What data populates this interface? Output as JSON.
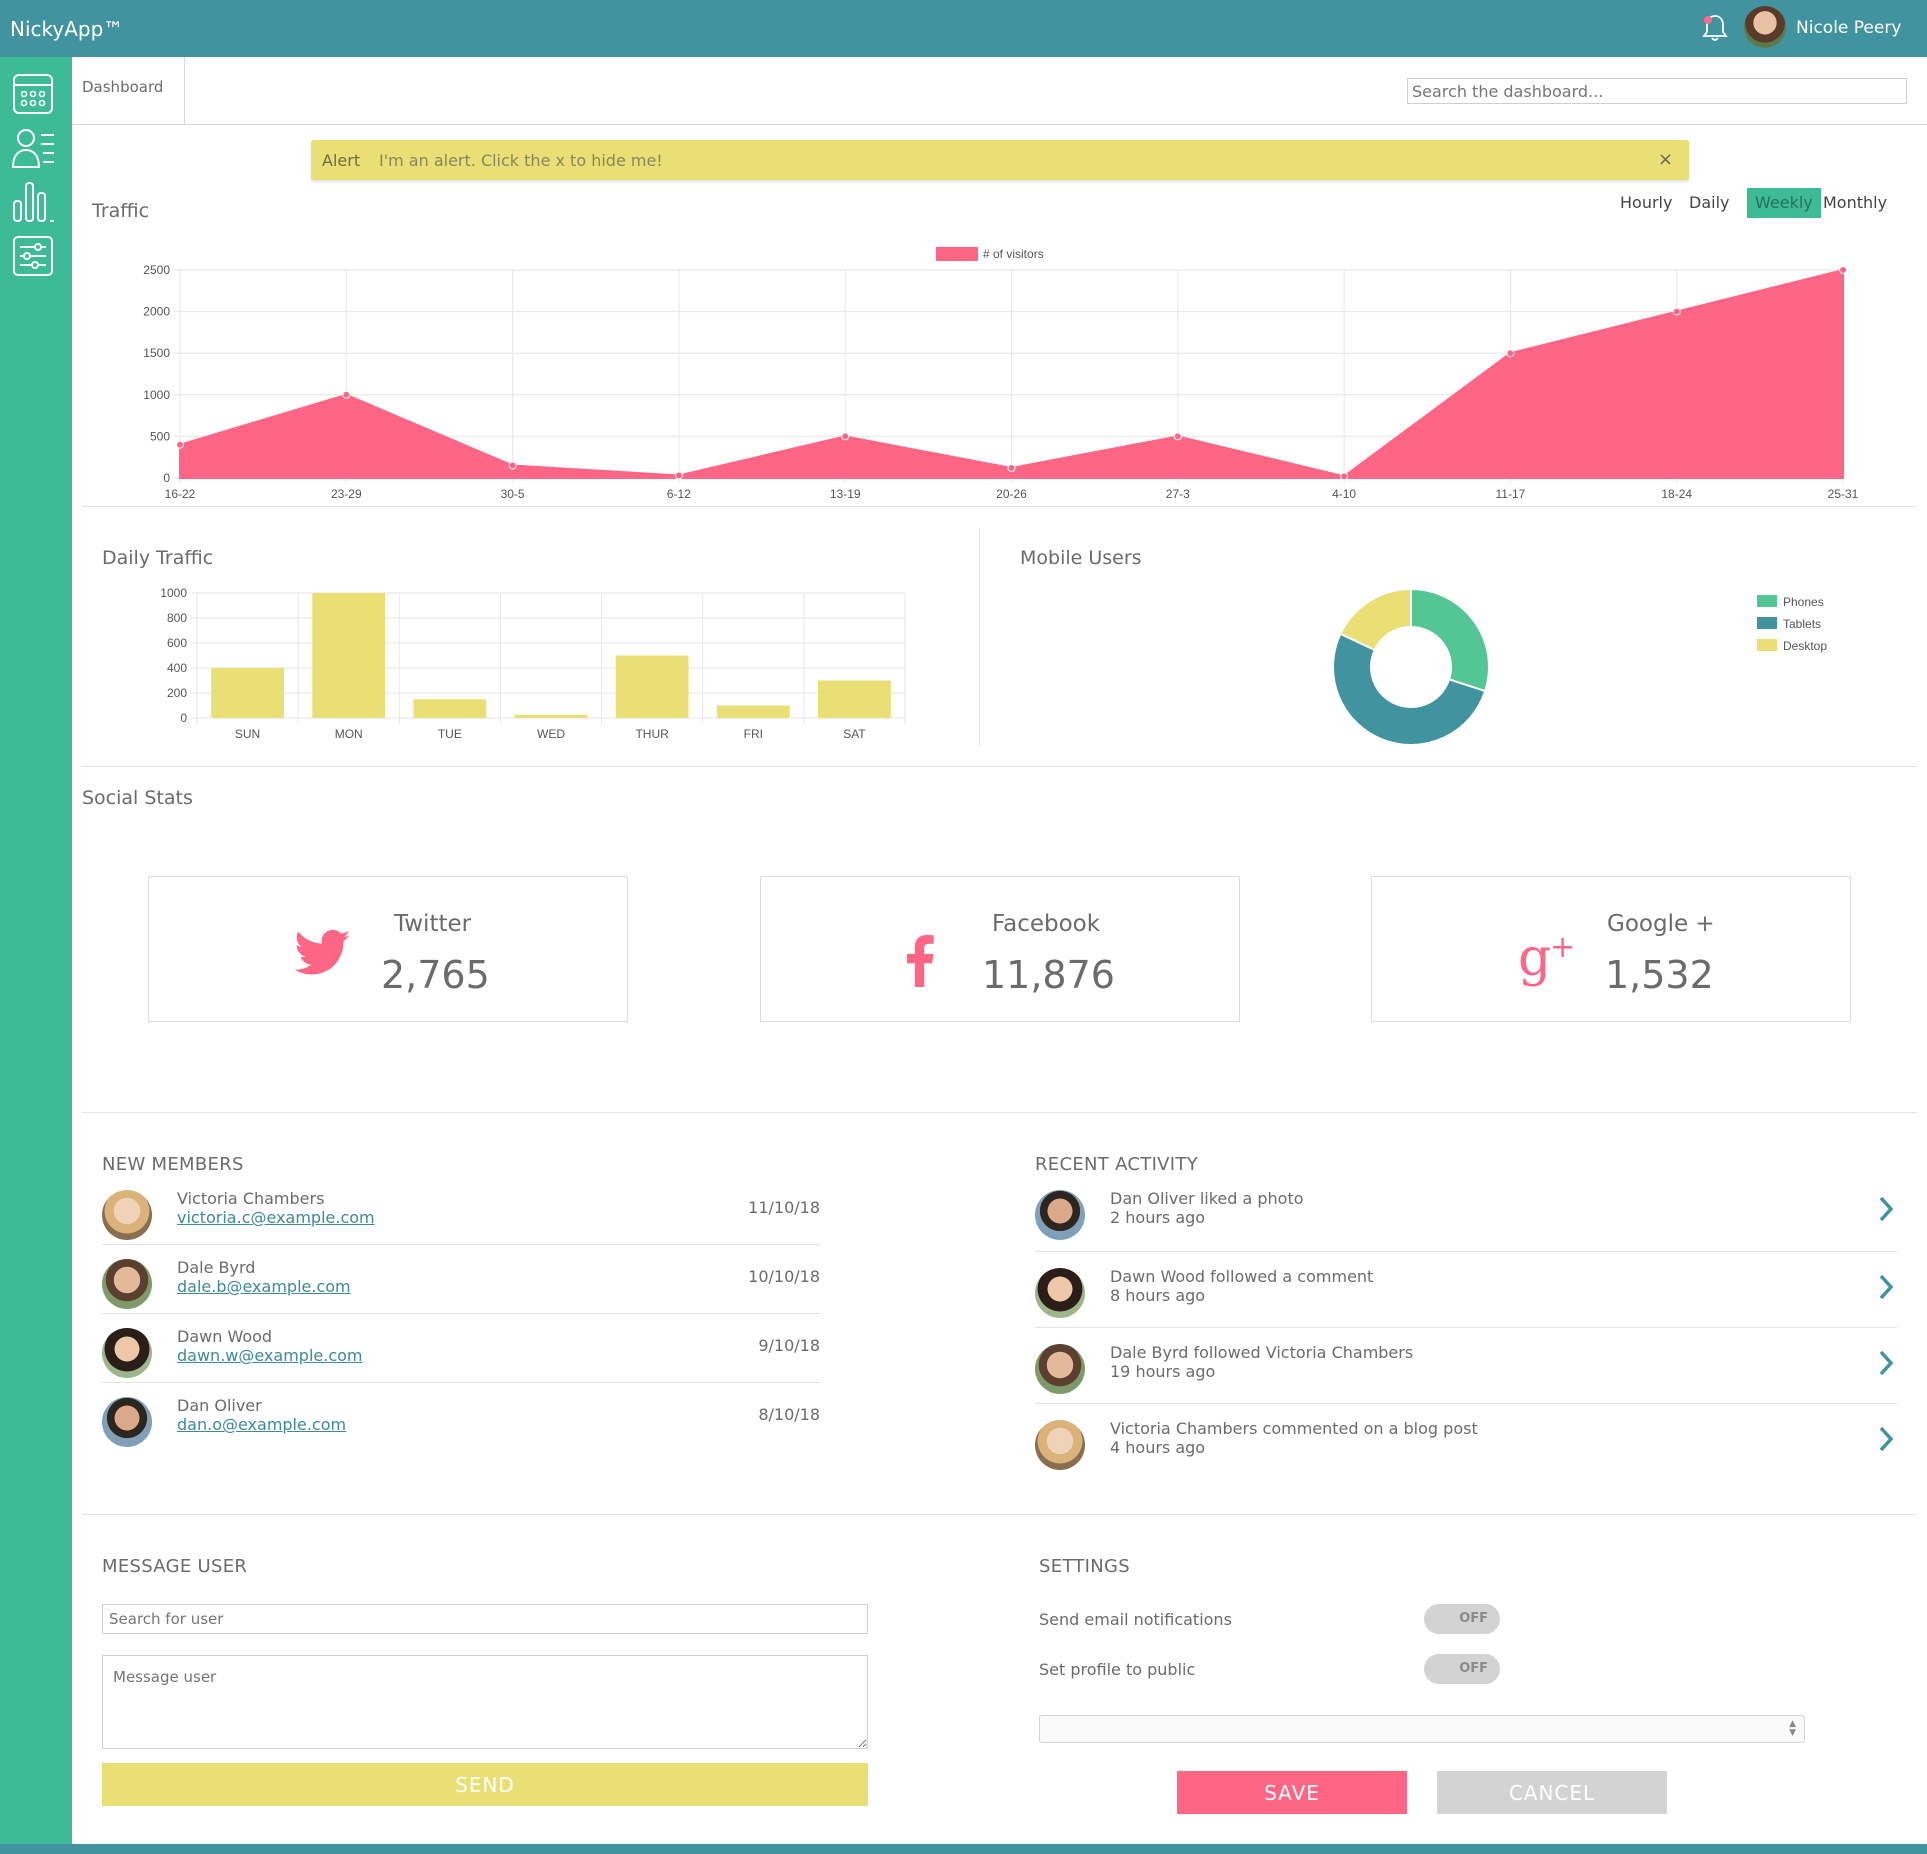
{
  "app": {
    "title": "NickyApp™"
  },
  "user": {
    "name": "Nicole Peery"
  },
  "header": {
    "tab": "Dashboard",
    "search_placeholder": "Search the dashboard..."
  },
  "alert": {
    "title": "Alert",
    "message": "I'm an alert. Click the x to hide me!",
    "close": "×"
  },
  "traffic": {
    "title": "Traffic",
    "tabs": [
      "Hourly",
      "Daily",
      "Weekly",
      "Monthly"
    ],
    "active_tab": "Weekly"
  },
  "daily_traffic": {
    "title": "Daily Traffic"
  },
  "mobile_users": {
    "title": "Mobile Users"
  },
  "chart_data": [
    {
      "type": "area",
      "legend": [
        "# of visitors"
      ],
      "legend_position": "top-center",
      "categories": [
        "16-22",
        "23-29",
        "30-5",
        "6-12",
        "13-19",
        "20-26",
        "27-3",
        "4-10",
        "11-17",
        "18-24",
        "25-31"
      ],
      "series": [
        {
          "name": "# of visitors",
          "values": [
            400,
            1000,
            150,
            30,
            500,
            120,
            500,
            20,
            1500,
            2000,
            2500
          ]
        }
      ],
      "ylim": [
        0,
        2500
      ],
      "yticks": [
        0,
        500,
        1000,
        1500,
        2000,
        2500
      ],
      "grid": true,
      "color": "#ff6584"
    },
    {
      "type": "bar",
      "categories": [
        "SUN",
        "MON",
        "TUE",
        "WED",
        "THUR",
        "FRI",
        "SAT"
      ],
      "values": [
        400,
        1000,
        150,
        25,
        500,
        100,
        300
      ],
      "ylim": [
        0,
        1000
      ],
      "yticks": [
        0,
        200,
        400,
        600,
        800,
        1000
      ],
      "grid": true,
      "color": "#e9df74"
    },
    {
      "type": "pie",
      "donut": true,
      "labels": [
        "Phones",
        "Tablets",
        "Desktop"
      ],
      "values": [
        30,
        52,
        18
      ],
      "colors": [
        "#54c595",
        "#40939f",
        "#e9df74"
      ],
      "legend_position": "right"
    }
  ],
  "social": {
    "title": "Social Stats",
    "cards": [
      {
        "name": "Twitter",
        "count": "2,765",
        "icon": "twitter-icon"
      },
      {
        "name": "Facebook",
        "count": "11,876",
        "icon": "facebook-icon"
      },
      {
        "name": "Google +",
        "count": "1,532",
        "icon": "google-plus-icon"
      }
    ]
  },
  "members": {
    "title": "NEW MEMBERS",
    "items": [
      {
        "name": "Victoria Chambers",
        "email": "victoria.c@example.com",
        "date": "11/10/18"
      },
      {
        "name": "Dale Byrd",
        "email": "dale.b@example.com",
        "date": "10/10/18"
      },
      {
        "name": "Dawn Wood",
        "email": "dawn.w@example.com",
        "date": "9/10/18"
      },
      {
        "name": "Dan Oliver",
        "email": "dan.o@example.com",
        "date": "8/10/18"
      }
    ]
  },
  "activity": {
    "title": "RECENT ACTIVITY",
    "items": [
      {
        "text": "Dan Oliver liked a photo",
        "time": "2 hours ago"
      },
      {
        "text": "Dawn Wood followed a comment",
        "time": "8 hours ago"
      },
      {
        "text": "Dale Byrd followed Victoria Chambers",
        "time": "19 hours ago"
      },
      {
        "text": "Victoria Chambers commented on a blog post",
        "time": "4 hours ago"
      }
    ]
  },
  "message": {
    "title": "MESSAGE USER",
    "search_placeholder": "Search for user",
    "message_placeholder": "Message user",
    "send": "SEND"
  },
  "settings": {
    "title": "SETTINGS",
    "email_label": "Send email notifications",
    "email_state": "OFF",
    "public_label": "Set profile to public",
    "public_state": "OFF",
    "save": "SAVE",
    "cancel": "CANCEL"
  },
  "colors": {
    "header": "#40939f",
    "sidebar": "#3cbb96",
    "accent_pink": "#ff6584",
    "accent_yellow": "#e9df74"
  }
}
